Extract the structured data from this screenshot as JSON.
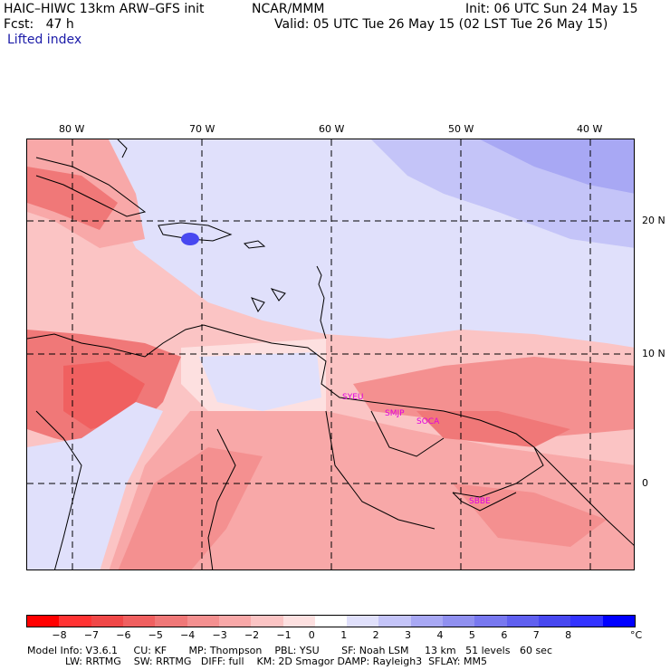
{
  "header": {
    "model_title": "HAIC–HIWC 13km ARW–GFS init",
    "institution": "NCAR/MMM",
    "init": "Init: 06 UTC Sun 24 May 15",
    "fcst": "Fcst:   47 h",
    "valid": "Valid: 05 UTC Tue 26 May 15 (02 LST Tue 26 May 15)",
    "field": "Lifted index"
  },
  "map": {
    "lon_labels": [
      "80 W",
      "70 W",
      "60 W",
      "50 W",
      "40 W"
    ],
    "lat_labels": [
      "20 N",
      "10 N",
      "0"
    ],
    "stations": [
      "SYEU",
      "SMJP",
      "SOCA",
      "SBBE"
    ]
  },
  "colorbar": {
    "colors": [
      "#ff0000",
      "#ff3333",
      "#f04848",
      "#f06060",
      "#f07878",
      "#f49090",
      "#f8a8a8",
      "#fbc4c4",
      "#fde0e0",
      "#ffffff",
      "#e0e0fb",
      "#c4c4f8",
      "#a8a8f4",
      "#9090f0",
      "#7878f0",
      "#6060f0",
      "#4848f0",
      "#3333ff",
      "#0000ff"
    ],
    "labels": [
      "−8",
      "−7",
      "−6",
      "−5",
      "−4",
      "−3",
      "−2",
      "−1",
      "0",
      "1",
      "2",
      "3",
      "4",
      "5",
      "6",
      "7",
      "8"
    ],
    "unit": "°C"
  },
  "footer": {
    "line1": "Model Info: V3.6.1     CU: KF       MP: Thompson    PBL: YSU       SF: Noah LSM     13 km   51 levels   60 sec",
    "line2": "            LW: RRTMG    SW: RRTMG   DIFF: full    KM: 2D Smagor DAMP: Rayleigh3  SFLAY: MM5"
  }
}
